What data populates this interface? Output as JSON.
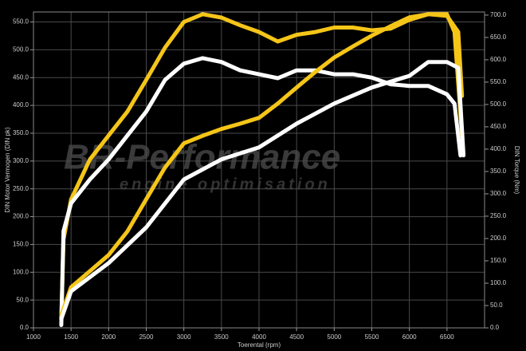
{
  "chart_data": {
    "type": "line",
    "y_label": "DIN Motor Vermogen (DIN pk)",
    "y2_label": "DIN Torque (Nm)",
    "x_label": "Toerental (rpm)",
    "watermark": "BR-Performance",
    "watermark_sub": "engine optimisation",
    "xlim": [
      1000,
      7000
    ],
    "xticks": [
      1000,
      1500,
      2000,
      2500,
      3000,
      3500,
      4000,
      4500,
      5000,
      5500,
      6000,
      6500
    ],
    "ylim": [
      0,
      568
    ],
    "yticks": [
      {
        "value": 0,
        "label": "0.0"
      },
      {
        "value": 50,
        "label": "50.0"
      },
      {
        "value": 100,
        "label": "100.0"
      },
      {
        "value": 150,
        "label": "150.0"
      },
      {
        "value": 200,
        "label": "200.0"
      },
      {
        "value": 250,
        "label": "250.0"
      },
      {
        "value": 300,
        "label": "300.0"
      },
      {
        "value": 350,
        "label": "350.0"
      },
      {
        "value": 400,
        "label": "400.0"
      },
      {
        "value": 450,
        "label": "450.0"
      },
      {
        "value": 500,
        "label": "500.0"
      },
      {
        "value": 550,
        "label": "550.0"
      }
    ],
    "y2lim": [
      0,
      707
    ],
    "y2ticks": [
      {
        "value": 0,
        "label": "0.0"
      },
      {
        "value": 50,
        "label": "50.0"
      },
      {
        "value": 100,
        "label": "100.0"
      },
      {
        "value": 150,
        "label": "150.0"
      },
      {
        "value": 200,
        "label": "200.0"
      },
      {
        "value": 250,
        "label": "250.0"
      },
      {
        "value": 300,
        "label": "300.0"
      },
      {
        "value": 350,
        "label": "350.0"
      },
      {
        "value": 400,
        "label": "400.0"
      },
      {
        "value": 450,
        "label": "450.0"
      },
      {
        "value": 500,
        "label": "500.0"
      },
      {
        "value": 550,
        "label": "550.0"
      },
      {
        "value": 600,
        "label": "600.0"
      },
      {
        "value": 650,
        "label": "650.0"
      },
      {
        "value": 700,
        "label": "700.0"
      }
    ],
    "grid": true,
    "series": [
      {
        "color": "#f5c518",
        "axis": "y",
        "x": [
          1370,
          1400,
          1500,
          1750,
          2000,
          2250,
          2500,
          2750,
          3000,
          3250,
          3500,
          3750,
          4000,
          4250,
          4500,
          4750,
          5000,
          5250,
          5500,
          5750,
          6000,
          6250,
          6500,
          6650,
          6700
        ],
        "values": [
          16,
          159,
          231,
          303,
          346,
          389,
          446,
          504,
          550,
          564,
          558,
          544,
          532,
          515,
          527,
          532,
          540,
          540,
          535,
          538,
          554,
          564,
          561,
          532,
          417
        ]
      },
      {
        "color": "#ffffff",
        "axis": "y",
        "x": [
          1370,
          1400,
          1500,
          1750,
          2000,
          2250,
          2500,
          2750,
          3000,
          3250,
          3500,
          3750,
          4000,
          4250,
          4500,
          4750,
          5000,
          5250,
          5500,
          5750,
          6000,
          6250,
          6500,
          6600,
          6680
        ],
        "values": [
          5,
          174,
          224,
          267,
          303,
          346,
          389,
          446,
          475,
          485,
          478,
          463,
          456,
          449,
          463,
          463,
          456,
          456,
          450,
          438,
          435,
          435,
          420,
          403,
          310
        ]
      },
      {
        "color": "#f5c518",
        "axis": "y2",
        "x": [
          1370,
          1500,
          1750,
          2000,
          2250,
          2500,
          2750,
          3000,
          3250,
          3500,
          3750,
          4000,
          4250,
          4500,
          4750,
          5000,
          5250,
          5500,
          5750,
          6000,
          6250,
          6500,
          6600,
          6700
        ],
        "values": [
          29,
          91,
          127,
          163,
          216,
          288,
          359,
          413,
          430,
          445,
          457,
          470,
          502,
          538,
          573,
          605,
          630,
          654,
          675,
          695,
          702,
          702,
          662,
          430
        ]
      },
      {
        "color": "#ffffff",
        "axis": "y2",
        "x": [
          1370,
          1500,
          2000,
          2500,
          3000,
          3500,
          4000,
          4500,
          5000,
          5500,
          6000,
          6250,
          6500,
          6650,
          6720
        ],
        "values": [
          20,
          82,
          145,
          225,
          332,
          377,
          404,
          457,
          502,
          538,
          564,
          595,
          595,
          582,
          386
        ]
      }
    ]
  }
}
